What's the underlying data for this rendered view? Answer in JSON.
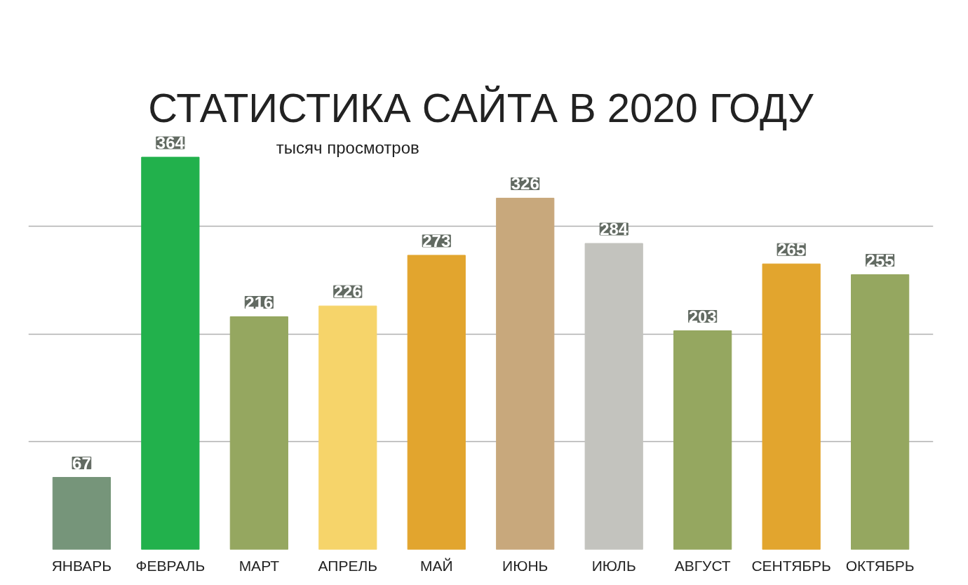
{
  "chart_data": {
    "type": "bar",
    "title": "СТАТИСТИКА САЙТА В 2020 ГОДУ",
    "ylabel": "тысяч просмотров",
    "categories": [
      "ЯНВАРЬ",
      "ФЕВРАЛЬ",
      "МАРТ",
      "АПРЕЛЬ",
      "МАЙ",
      "ИЮНЬ",
      "ИЮЛЬ",
      "АВГУСТ",
      "СЕНТЯБРЬ",
      "ОКТЯБРЬ"
    ],
    "values": [
      67,
      364,
      216,
      226,
      273,
      326,
      284,
      203,
      265,
      255
    ],
    "colors": [
      "#76957a",
      "#22b14c",
      "#95a760",
      "#f6d46a",
      "#e2a52e",
      "#c8a87c",
      "#c3c3be",
      "#95a760",
      "#e2a52e",
      "#95a760"
    ],
    "grid": "y",
    "data_labels": true,
    "tick_labels": "x"
  }
}
